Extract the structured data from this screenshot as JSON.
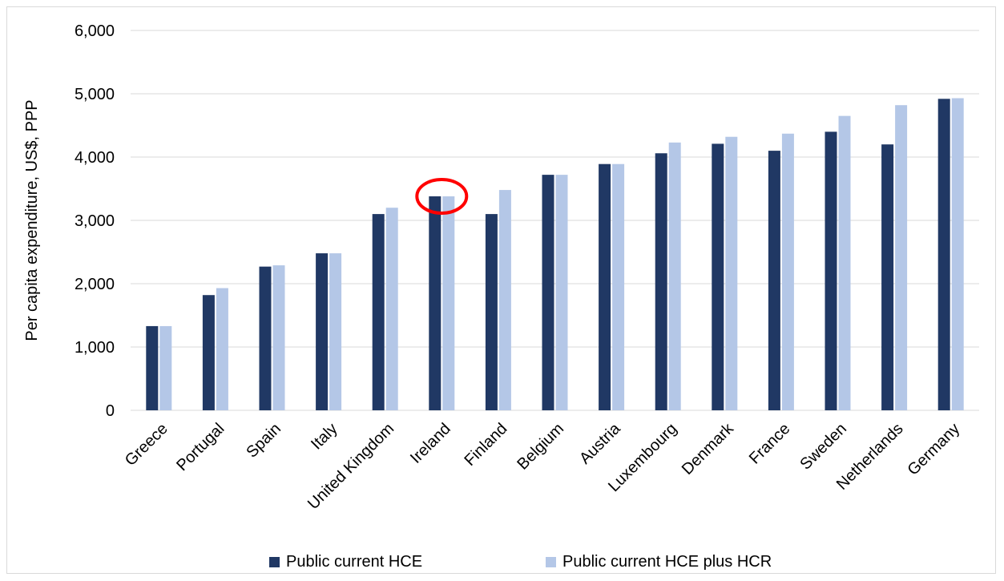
{
  "chart_data": {
    "type": "bar",
    "title": "",
    "xlabel": "",
    "ylabel": "Per capita expenditure, US$, PPP",
    "ylim": [
      0,
      6000
    ],
    "yticks": [
      0,
      1000,
      2000,
      3000,
      4000,
      5000,
      6000
    ],
    "ytick_labels": [
      "0",
      "1,000",
      "2,000",
      "3,000",
      "4,000",
      "5,000",
      "6,000"
    ],
    "grid": true,
    "legend_position": "bottom",
    "categories": [
      "Greece",
      "Portugal",
      "Spain",
      "Italy",
      "United Kingdom",
      "Ireland",
      "Finland",
      "Belgium",
      "Austria",
      "Luxembourg",
      "Denmark",
      "France",
      "Sweden",
      "Netherlands",
      "Germany"
    ],
    "series": [
      {
        "name": "Public current HCE",
        "color": "#203864",
        "values": [
          1330,
          1820,
          2270,
          2480,
          3100,
          3380,
          3100,
          3720,
          3890,
          4060,
          4210,
          4100,
          4400,
          4200,
          4920
        ]
      },
      {
        "name": "Public current HCE plus HCR",
        "color": "#b4c7e7",
        "values": [
          1330,
          1930,
          2290,
          2480,
          3200,
          3380,
          3480,
          3720,
          3890,
          4230,
          4320,
          4370,
          4650,
          4820,
          4930
        ]
      }
    ],
    "annotations": [
      {
        "type": "circle",
        "category": "Ireland",
        "color": "#ff0000"
      }
    ]
  }
}
